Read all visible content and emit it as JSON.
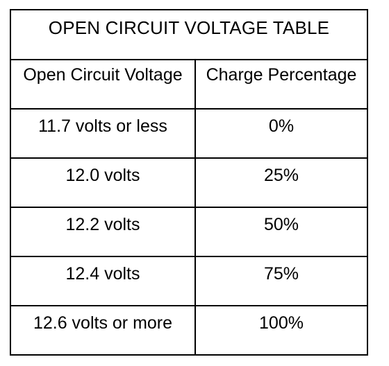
{
  "table": {
    "title": "OPEN CIRCUIT VOLTAGE TABLE",
    "headers": [
      "Open Circuit Voltage",
      "Charge Percentage"
    ],
    "rows": [
      [
        "11.7 volts or less",
        "0%"
      ],
      [
        "12.0 volts",
        "25%"
      ],
      [
        "12.2 volts",
        "50%"
      ],
      [
        "12.4 volts",
        "75%"
      ],
      [
        "12.6 volts or more",
        "100%"
      ]
    ]
  }
}
